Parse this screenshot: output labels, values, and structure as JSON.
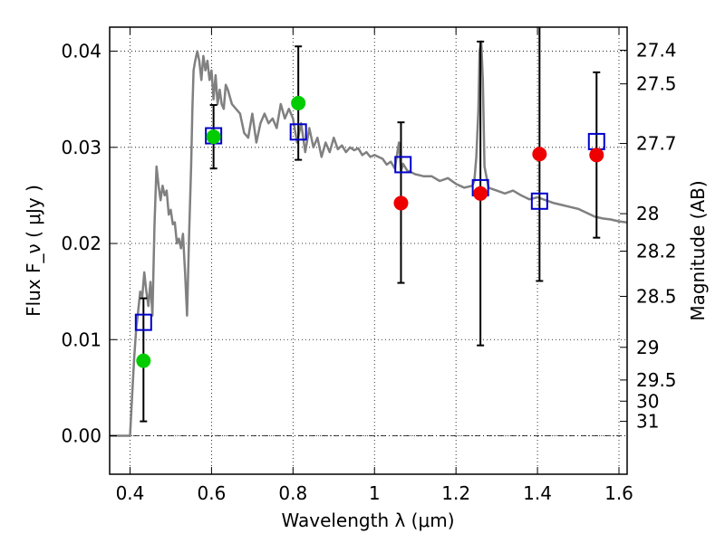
{
  "chart_data": {
    "type": "scatter",
    "title": "",
    "xlabel": "Wavelength  λ (μm)",
    "ylabel": "Flux  F_ν  ( μJy )",
    "y2label": "Magnitude (AB)",
    "xlim": [
      0.35,
      1.62
    ],
    "ylim": [
      -0.004,
      0.0425
    ],
    "grid": true,
    "x_ticks": [
      0.4,
      0.6,
      0.8,
      1.0,
      1.2,
      1.4,
      1.6
    ],
    "x_tick_labels": [
      "0.4",
      "0.6",
      "0.8",
      "1",
      "1.2",
      "1.4",
      "1.6"
    ],
    "y_ticks": [
      0.0,
      0.01,
      0.02,
      0.03,
      0.04
    ],
    "y_tick_labels": [
      "0.00",
      "0.01",
      "0.02",
      "0.03",
      "0.04"
    ],
    "y2_ticks": [
      {
        "mag": "27.4",
        "flux": 0.0401
      },
      {
        "mag": "27.5",
        "flux": 0.0366
      },
      {
        "mag": "27.7",
        "flux": 0.0304
      },
      {
        "mag": "28",
        "flux": 0.0231
      },
      {
        "mag": "28.2",
        "flux": 0.0192
      },
      {
        "mag": "28.5",
        "flux": 0.0145
      },
      {
        "mag": "29",
        "flux": 0.0092
      },
      {
        "mag": "29.5",
        "flux": 0.0058
      },
      {
        "mag": "30",
        "flux": 0.0036
      },
      {
        "mag": "31",
        "flux": 0.0015
      }
    ],
    "template": {
      "color": "#808080",
      "x": [
        0.35,
        0.4,
        0.405,
        0.41,
        0.415,
        0.42,
        0.425,
        0.43,
        0.435,
        0.44,
        0.445,
        0.45,
        0.455,
        0.46,
        0.465,
        0.47,
        0.475,
        0.48,
        0.485,
        0.49,
        0.495,
        0.5,
        0.505,
        0.51,
        0.515,
        0.52,
        0.525,
        0.53,
        0.535,
        0.54,
        0.545,
        0.55,
        0.553,
        0.556,
        0.56,
        0.565,
        0.57,
        0.575,
        0.58,
        0.585,
        0.59,
        0.595,
        0.6,
        0.605,
        0.61,
        0.615,
        0.62,
        0.625,
        0.63,
        0.635,
        0.64,
        0.65,
        0.66,
        0.67,
        0.68,
        0.69,
        0.7,
        0.71,
        0.72,
        0.73,
        0.74,
        0.75,
        0.76,
        0.77,
        0.78,
        0.79,
        0.8,
        0.81,
        0.82,
        0.83,
        0.84,
        0.85,
        0.86,
        0.87,
        0.88,
        0.89,
        0.9,
        0.91,
        0.92,
        0.93,
        0.94,
        0.95,
        0.96,
        0.97,
        0.98,
        0.99,
        1.0,
        1.01,
        1.02,
        1.03,
        1.04,
        1.05,
        1.06,
        1.065,
        1.07,
        1.08,
        1.1,
        1.12,
        1.14,
        1.16,
        1.18,
        1.2,
        1.22,
        1.24,
        1.245,
        1.25,
        1.255,
        1.258,
        1.262,
        1.266,
        1.27,
        1.28,
        1.3,
        1.32,
        1.34,
        1.36,
        1.38,
        1.4,
        1.42,
        1.44,
        1.46,
        1.48,
        1.5,
        1.52,
        1.54,
        1.56,
        1.58,
        1.6,
        1.62
      ],
      "y": [
        0.0,
        0.0,
        0.004,
        0.008,
        0.011,
        0.013,
        0.015,
        0.0145,
        0.017,
        0.015,
        0.0135,
        0.016,
        0.0125,
        0.022,
        0.028,
        0.026,
        0.0245,
        0.026,
        0.025,
        0.0255,
        0.023,
        0.0235,
        0.022,
        0.0222,
        0.02,
        0.0205,
        0.0195,
        0.021,
        0.017,
        0.0125,
        0.021,
        0.028,
        0.034,
        0.038,
        0.039,
        0.04,
        0.039,
        0.037,
        0.0395,
        0.038,
        0.039,
        0.037,
        0.038,
        0.035,
        0.0375,
        0.0345,
        0.036,
        0.0345,
        0.034,
        0.0365,
        0.036,
        0.0345,
        0.034,
        0.0335,
        0.0315,
        0.031,
        0.0335,
        0.0305,
        0.0325,
        0.0335,
        0.0325,
        0.033,
        0.032,
        0.0345,
        0.033,
        0.034,
        0.033,
        0.0305,
        0.0325,
        0.0295,
        0.032,
        0.03,
        0.031,
        0.029,
        0.0305,
        0.0295,
        0.031,
        0.0298,
        0.0302,
        0.0295,
        0.03,
        0.0297,
        0.0299,
        0.0292,
        0.0295,
        0.029,
        0.0292,
        0.029,
        0.0288,
        0.0282,
        0.0285,
        0.0278,
        0.0305,
        0.0275,
        0.0283,
        0.0276,
        0.0272,
        0.027,
        0.027,
        0.0265,
        0.0268,
        0.0262,
        0.0258,
        0.026,
        0.0265,
        0.029,
        0.034,
        0.04,
        0.041,
        0.037,
        0.028,
        0.0258,
        0.0255,
        0.0252,
        0.0255,
        0.025,
        0.0246,
        0.0248,
        0.0245,
        0.0242,
        0.024,
        0.0238,
        0.0236,
        0.0232,
        0.0228,
        0.0226,
        0.0225,
        0.0223,
        0.0222
      ]
    },
    "series": [
      {
        "marker": "open-square",
        "color": "#0000cc",
        "x": [
          0.433,
          0.605,
          0.813,
          1.07,
          1.26,
          1.405,
          1.545
        ],
        "y": [
          0.0118,
          0.0312,
          0.0316,
          0.0282,
          0.0258,
          0.0244,
          0.0306
        ]
      },
      {
        "marker": "filled-circle",
        "color": "#00cc00",
        "x": [
          0.433,
          0.605,
          0.813
        ],
        "y": [
          0.0078,
          0.0311,
          0.0346
        ]
      },
      {
        "marker": "filled-circle",
        "color": "#ee0000",
        "x": [
          1.065,
          1.26,
          1.405,
          1.545
        ],
        "y": [
          0.0242,
          0.0252,
          0.0293,
          0.0292
        ]
      }
    ],
    "errorbars": {
      "color": "#000000",
      "x": [
        0.433,
        0.605,
        0.813,
        1.065,
        1.26,
        1.405,
        1.545
      ],
      "y_low": [
        0.0015,
        0.0278,
        0.0287,
        0.0159,
        0.0094,
        0.0161,
        0.0206
      ],
      "y_high": [
        0.0143,
        0.0344,
        0.0405,
        0.0326,
        0.041,
        0.043,
        0.0378
      ]
    },
    "zero_line": 0.0
  }
}
